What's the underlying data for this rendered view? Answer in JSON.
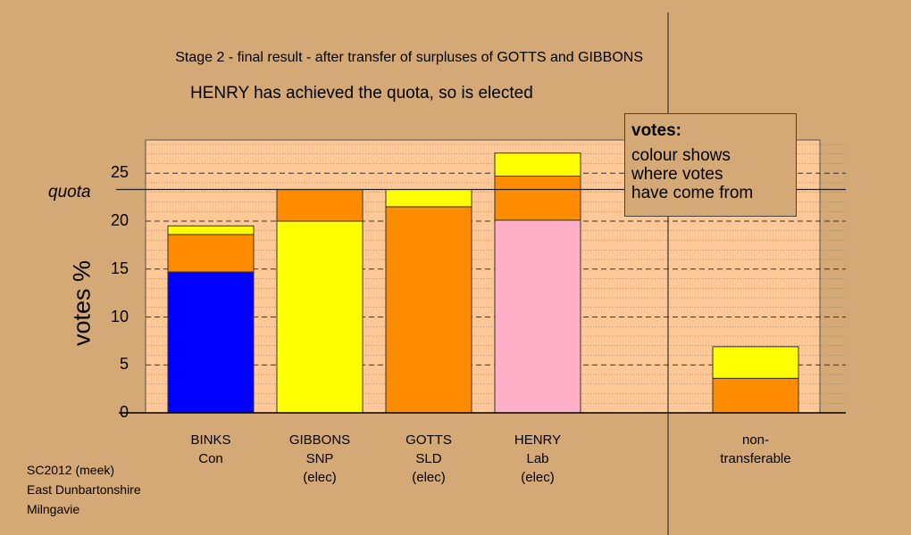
{
  "header": {
    "line1": "Stage 2 - final result - after transfer of surpluses of GOTTS and GIBBONS",
    "line2": "HENRY has achieved the quota, so is elected"
  },
  "footer": [
    "SC2012 (meek)",
    "East Dunbartonshire",
    "Milngavie"
  ],
  "legend": {
    "title": "votes:",
    "body": [
      "colour shows",
      "where votes",
      "have come from"
    ]
  },
  "chart_data": {
    "type": "bar",
    "stacked": true,
    "ylabel": "votes %",
    "ylim": [
      0,
      28.5
    ],
    "yticks": [
      0,
      5,
      10,
      15,
      20,
      25
    ],
    "quota": 23.3,
    "quota_label": "quota",
    "colors": {
      "Con": "#0000FF",
      "SNP": "#FFFF00",
      "SLD": "#FF8C00",
      "Lab": "#FFB0C8"
    },
    "candidates": [
      {
        "name": "BINKS",
        "party": "Con",
        "status": "",
        "segments": [
          {
            "source": "Con",
            "value": 14.7,
            "color": "#0000FF"
          },
          {
            "source": "SLD",
            "value": 3.9,
            "color": "#FF8C00"
          },
          {
            "source": "SNP",
            "value": 0.9,
            "color": "#FFFF00"
          }
        ]
      },
      {
        "name": "GIBBONS",
        "party": "SNP",
        "status": "(elec)",
        "segments": [
          {
            "source": "SNP",
            "value": 20.0,
            "color": "#FFFF00"
          },
          {
            "source": "SLD",
            "value": 3.3,
            "color": "#FF8C00"
          }
        ]
      },
      {
        "name": "GOTTS",
        "party": "SLD",
        "status": "(elec)",
        "segments": [
          {
            "source": "SLD",
            "value": 21.5,
            "color": "#FF8C00"
          },
          {
            "source": "SNP",
            "value": 1.8,
            "color": "#FFFF00"
          }
        ]
      },
      {
        "name": "HENRY",
        "party": "Lab",
        "status": "(elec)",
        "segments": [
          {
            "source": "Lab",
            "value": 20.1,
            "color": "#FFB0C8"
          },
          {
            "source": "SLD",
            "value": 4.6,
            "color": "#FF8C00"
          },
          {
            "source": "SNP",
            "value": 2.4,
            "color": "#FFFF00"
          }
        ]
      },
      {
        "name": "",
        "party": "",
        "status": "",
        "segments": []
      },
      {
        "name": "non-",
        "party": "transferable",
        "status": "",
        "segments": [
          {
            "source": "SLD",
            "value": 3.6,
            "color": "#FF8C00"
          },
          {
            "source": "SNP",
            "value": 3.3,
            "color": "#FFFF00"
          }
        ]
      }
    ]
  }
}
